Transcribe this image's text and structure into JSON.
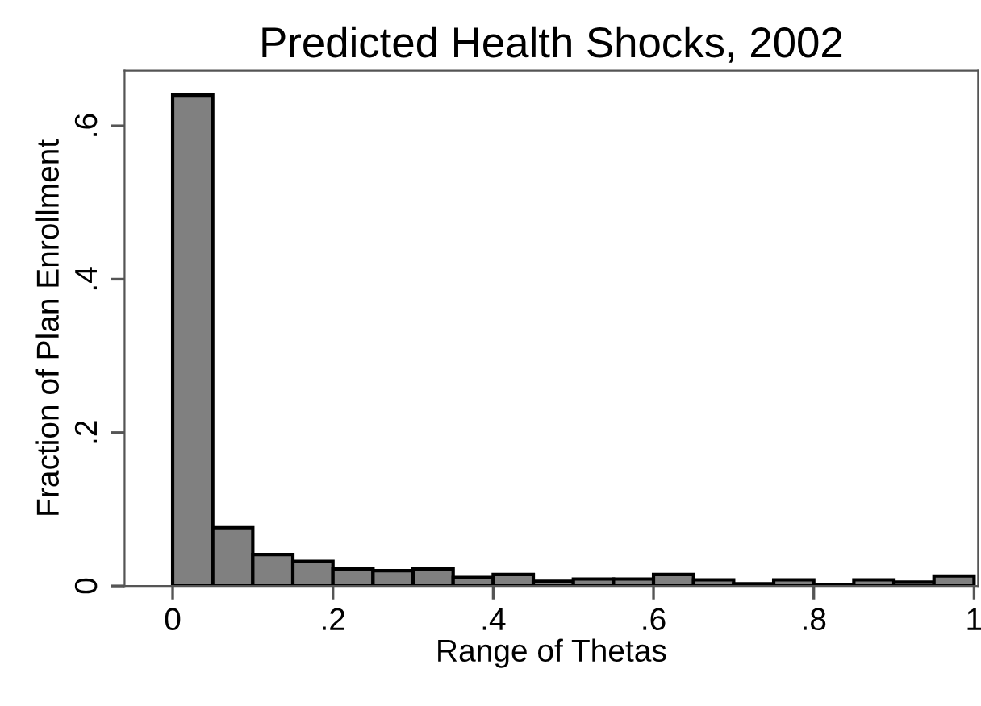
{
  "chart_data": {
    "type": "histogram",
    "title": "Predicted Health Shocks, 2002",
    "xlabel": "Range of Thetas",
    "ylabel": "Fraction of Plan Enrollment",
    "bins": [
      0,
      0.05,
      0.1,
      0.15,
      0.2,
      0.25,
      0.3,
      0.35,
      0.4,
      0.45,
      0.5,
      0.55,
      0.6,
      0.65,
      0.7,
      0.75,
      0.8,
      0.85,
      0.9,
      0.95,
      1
    ],
    "values": [
      0.64,
      0.076,
      0.041,
      0.032,
      0.022,
      0.02,
      0.022,
      0.011,
      0.015,
      0.006,
      0.009,
      0.009,
      0.015,
      0.008,
      0.003,
      0.008,
      0.002,
      0.008,
      0.005,
      0.013
    ],
    "color": "#808080",
    "xlim": [
      -0.06,
      1.005
    ],
    "ylim": [
      0,
      0.672
    ],
    "xticks": [
      0,
      {
        "value": 0.2,
        "label": ".2"
      },
      {
        "value": 0.4,
        "label": ".4"
      },
      {
        "value": 0.6,
        "label": ".6"
      },
      {
        "value": 0.8,
        "label": ".8"
      },
      1
    ],
    "yticks": [
      0,
      {
        "value": 0.2,
        "label": ".2"
      },
      {
        "value": 0.4,
        "label": ".4"
      },
      {
        "value": 0.6,
        "label": ".6"
      }
    ],
    "grid": false
  }
}
